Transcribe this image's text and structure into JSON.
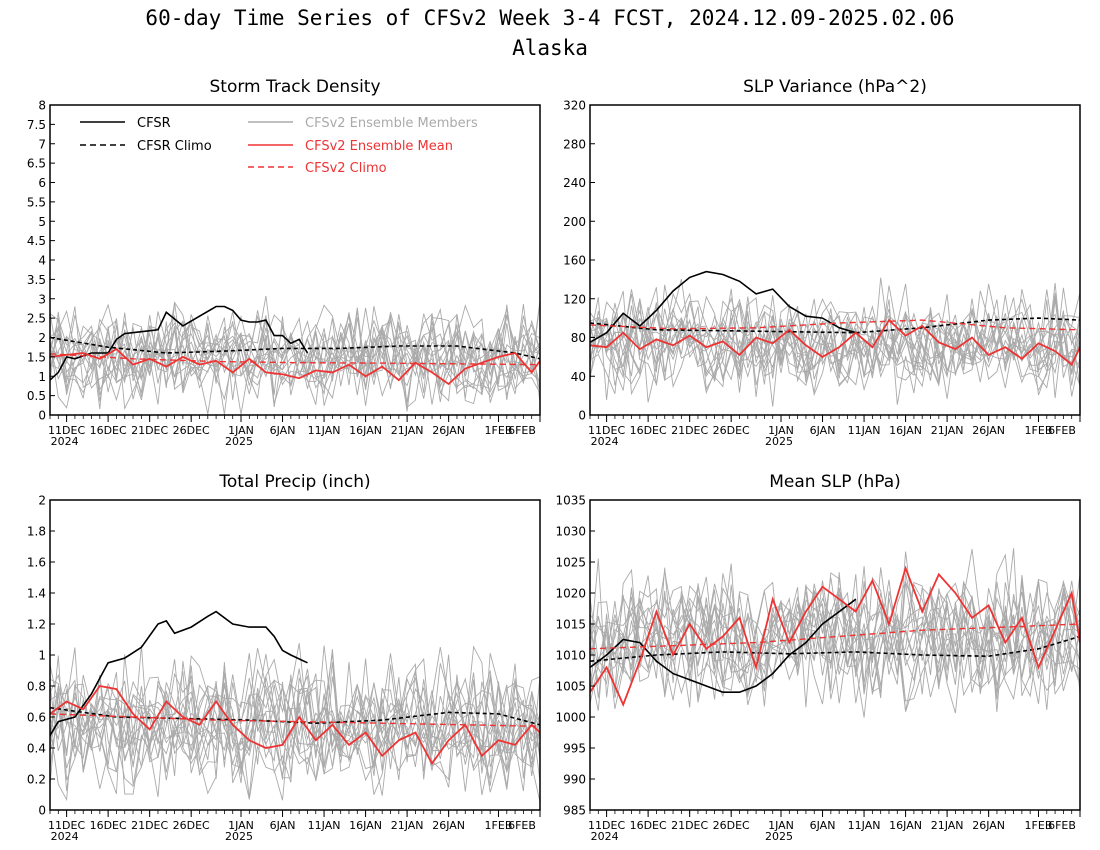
{
  "figure": {
    "title_line1": "60-day Time Series of CFSv2 Week 3-4 FCST, 2024.12.09-2025.02.06",
    "title_line2": "Alaska"
  },
  "colors": {
    "cfsr": "#000000",
    "ensemble_member": "#aaaaaa",
    "ensemble_mean": "#ee3333",
    "cfsv2_climo": "#ee3333"
  },
  "legend": {
    "cfsr": "CFSR",
    "cfsr_climo": "CFSR Climo",
    "members": "CFSv2 Ensemble Members",
    "mean": "CFSv2 Ensemble Mean",
    "cfsv2_climo": "CFSv2 Climo"
  },
  "chart_data": [
    {
      "type": "line",
      "title": "Storm Track Density",
      "x_start": "2024-12-09",
      "x_end": "2025-02-06",
      "xticks": [
        {
          "label": "11DEC",
          "sub": "2024"
        },
        {
          "label": "16DEC"
        },
        {
          "label": "21DEC"
        },
        {
          "label": "26DEC"
        },
        {
          "label": "1JAN",
          "sub": "2025"
        },
        {
          "label": "6JAN"
        },
        {
          "label": "11JAN"
        },
        {
          "label": "16JAN"
        },
        {
          "label": "21JAN"
        },
        {
          "label": "26JAN"
        },
        {
          "label": "1FEB"
        },
        {
          "label": "6FEB"
        }
      ],
      "ylim": [
        0,
        8
      ],
      "yticks": [
        "0",
        "0.5",
        "1",
        "1.5",
        "2",
        "2.5",
        "3",
        "3.5",
        "4",
        "4.5",
        "5",
        "5.5",
        "6",
        "6.5",
        "7",
        "7.5",
        "8"
      ],
      "member_count": 16,
      "member_center": 1.5,
      "member_spread": 1.3,
      "member_floor": 0,
      "series": [
        {
          "name": "CFSR",
          "dates": [
            "2024-12-09",
            "2024-12-10",
            "2024-12-11",
            "2024-12-12",
            "2024-12-14",
            "2024-12-16",
            "2024-12-17",
            "2024-12-18",
            "2024-12-20",
            "2024-12-22",
            "2024-12-23",
            "2024-12-25",
            "2024-12-27",
            "2024-12-29",
            "2024-12-30",
            "2024-12-31",
            "2025-01-01",
            "2025-01-02",
            "2025-01-03",
            "2025-01-04",
            "2025-01-05",
            "2025-01-06",
            "2025-01-07",
            "2025-01-08",
            "2025-01-09"
          ],
          "values": [
            0.9,
            1.1,
            1.5,
            1.45,
            1.6,
            1.6,
            1.95,
            2.1,
            2.15,
            2.2,
            2.65,
            2.3,
            2.55,
            2.8,
            2.8,
            2.7,
            2.45,
            2.4,
            2.4,
            2.45,
            2.05,
            2.05,
            1.85,
            1.95,
            1.6
          ]
        },
        {
          "name": "CFSR Climo",
          "dates": [
            "2024-12-09",
            "2024-12-16",
            "2024-12-23",
            "2024-12-30",
            "2025-01-06",
            "2025-01-13",
            "2025-01-20",
            "2025-01-27",
            "2025-02-03",
            "2025-02-06"
          ],
          "values": [
            2.0,
            1.75,
            1.6,
            1.65,
            1.72,
            1.72,
            1.78,
            1.78,
            1.6,
            1.45
          ]
        },
        {
          "name": "CFSv2 Ensemble Mean",
          "dates": [
            "2024-12-09",
            "2024-12-11",
            "2024-12-13",
            "2024-12-15",
            "2024-12-17",
            "2024-12-19",
            "2024-12-21",
            "2024-12-23",
            "2024-12-25",
            "2024-12-27",
            "2024-12-29",
            "2024-12-31",
            "2025-01-02",
            "2025-01-04",
            "2025-01-06",
            "2025-01-08",
            "2025-01-10",
            "2025-01-12",
            "2025-01-14",
            "2025-01-16",
            "2025-01-18",
            "2025-01-20",
            "2025-01-22",
            "2025-01-24",
            "2025-01-26",
            "2025-01-28",
            "2025-01-30",
            "2025-02-01",
            "2025-02-03",
            "2025-02-05",
            "2025-02-06"
          ],
          "values": [
            1.5,
            1.55,
            1.6,
            1.45,
            1.7,
            1.3,
            1.45,
            1.25,
            1.5,
            1.3,
            1.4,
            1.1,
            1.45,
            1.1,
            1.05,
            0.95,
            1.15,
            1.1,
            1.3,
            1.0,
            1.25,
            0.9,
            1.35,
            1.1,
            0.8,
            1.2,
            1.35,
            1.5,
            1.6,
            1.1,
            1.4
          ]
        },
        {
          "name": "CFSv2 Climo",
          "dates": [
            "2024-12-09",
            "2024-12-19",
            "2024-12-29",
            "2025-01-08",
            "2025-01-18",
            "2025-01-28",
            "2025-02-06"
          ],
          "values": [
            1.58,
            1.45,
            1.38,
            1.35,
            1.34,
            1.32,
            1.3
          ]
        }
      ]
    },
    {
      "type": "line",
      "title": "SLP Variance (hPa^2)",
      "x_start": "2024-12-09",
      "x_end": "2025-02-06",
      "xticks": [
        {
          "label": "11DEC",
          "sub": "2024"
        },
        {
          "label": "16DEC"
        },
        {
          "label": "21DEC"
        },
        {
          "label": "26DEC"
        },
        {
          "label": "1JAN",
          "sub": "2025"
        },
        {
          "label": "6JAN"
        },
        {
          "label": "11JAN"
        },
        {
          "label": "16JAN"
        },
        {
          "label": "21JAN"
        },
        {
          "label": "26JAN"
        },
        {
          "label": "1FEB"
        },
        {
          "label": "6FEB"
        }
      ],
      "ylim": [
        0,
        320
      ],
      "yticks": [
        "0",
        "40",
        "80",
        "120",
        "160",
        "200",
        "240",
        "280",
        "320"
      ],
      "member_count": 16,
      "member_center": 75,
      "member_spread": 55,
      "member_floor": 5,
      "series": [
        {
          "name": "CFSR",
          "dates": [
            "2024-12-09",
            "2024-12-11",
            "2024-12-13",
            "2024-12-15",
            "2024-12-17",
            "2024-12-19",
            "2024-12-21",
            "2024-12-23",
            "2024-12-25",
            "2024-12-27",
            "2024-12-29",
            "2024-12-31",
            "2025-01-02",
            "2025-01-04",
            "2025-01-06",
            "2025-01-08",
            "2025-01-10"
          ],
          "values": [
            75,
            85,
            105,
            92,
            108,
            128,
            142,
            148,
            145,
            138,
            125,
            130,
            112,
            102,
            100,
            90,
            85
          ]
        },
        {
          "name": "CFSR Climo",
          "dates": [
            "2024-12-09",
            "2024-12-17",
            "2024-12-25",
            "2025-01-02",
            "2025-01-10",
            "2025-01-18",
            "2025-01-26",
            "2025-02-01",
            "2025-02-06"
          ],
          "values": [
            95,
            88,
            87,
            86,
            85,
            90,
            98,
            100,
            98
          ]
        },
        {
          "name": "CFSv2 Ensemble Mean",
          "dates": [
            "2024-12-09",
            "2024-12-11",
            "2024-12-13",
            "2024-12-15",
            "2024-12-17",
            "2024-12-19",
            "2024-12-21",
            "2024-12-23",
            "2024-12-25",
            "2024-12-27",
            "2024-12-29",
            "2024-12-31",
            "2025-01-02",
            "2025-01-04",
            "2025-01-06",
            "2025-01-08",
            "2025-01-10",
            "2025-01-12",
            "2025-01-14",
            "2025-01-16",
            "2025-01-18",
            "2025-01-20",
            "2025-01-22",
            "2025-01-24",
            "2025-01-26",
            "2025-01-28",
            "2025-01-30",
            "2025-02-01",
            "2025-02-03",
            "2025-02-05",
            "2025-02-06"
          ],
          "values": [
            72,
            70,
            85,
            68,
            78,
            72,
            82,
            70,
            76,
            62,
            80,
            74,
            88,
            72,
            60,
            70,
            85,
            70,
            98,
            82,
            92,
            75,
            68,
            80,
            62,
            70,
            58,
            74,
            66,
            52,
            70
          ]
        },
        {
          "name": "CFSv2 Climo",
          "dates": [
            "2024-12-09",
            "2024-12-19",
            "2024-12-29",
            "2025-01-08",
            "2025-01-18",
            "2025-01-28",
            "2025-02-06"
          ],
          "values": [
            93,
            89,
            90,
            95,
            98,
            90,
            88
          ]
        }
      ]
    },
    {
      "type": "line",
      "title": "Total Precip (inch)",
      "x_start": "2024-12-09",
      "x_end": "2025-02-06",
      "xticks": [
        {
          "label": "11DEC",
          "sub": "2024"
        },
        {
          "label": "16DEC"
        },
        {
          "label": "21DEC"
        },
        {
          "label": "26DEC"
        },
        {
          "label": "1JAN",
          "sub": "2025"
        },
        {
          "label": "6JAN"
        },
        {
          "label": "11JAN"
        },
        {
          "label": "16JAN"
        },
        {
          "label": "21JAN"
        },
        {
          "label": "26JAN"
        },
        {
          "label": "1FEB"
        },
        {
          "label": "6FEB"
        }
      ],
      "ylim": [
        0,
        2
      ],
      "yticks": [
        "0",
        "0.2",
        "0.4",
        "0.6",
        "0.8",
        "1",
        "1.2",
        "1.4",
        "1.6",
        "1.8",
        "2"
      ],
      "member_count": 16,
      "member_center": 0.55,
      "member_spread": 0.45,
      "member_floor": 0.05,
      "series": [
        {
          "name": "CFSR",
          "dates": [
            "2024-12-09",
            "2024-12-10",
            "2024-12-12",
            "2024-12-14",
            "2024-12-15",
            "2024-12-16",
            "2024-12-18",
            "2024-12-20",
            "2024-12-22",
            "2024-12-23",
            "2024-12-24",
            "2024-12-26",
            "2024-12-28",
            "2024-12-29",
            "2024-12-31",
            "2025-01-02",
            "2025-01-04",
            "2025-01-05",
            "2025-01-06",
            "2025-01-07",
            "2025-01-09"
          ],
          "values": [
            0.48,
            0.57,
            0.6,
            0.75,
            0.85,
            0.95,
            0.98,
            1.05,
            1.2,
            1.22,
            1.14,
            1.18,
            1.25,
            1.28,
            1.2,
            1.18,
            1.18,
            1.12,
            1.03,
            1.0,
            0.95
          ]
        },
        {
          "name": "CFSR Climo",
          "dates": [
            "2024-12-09",
            "2024-12-17",
            "2024-12-25",
            "2025-01-02",
            "2025-01-10",
            "2025-01-18",
            "2025-01-26",
            "2025-02-01",
            "2025-02-06"
          ],
          "values": [
            0.66,
            0.6,
            0.59,
            0.58,
            0.56,
            0.58,
            0.63,
            0.62,
            0.55
          ]
        },
        {
          "name": "CFSv2 Ensemble Mean",
          "dates": [
            "2024-12-09",
            "2024-12-11",
            "2024-12-13",
            "2024-12-15",
            "2024-12-17",
            "2024-12-19",
            "2024-12-21",
            "2024-12-23",
            "2024-12-25",
            "2024-12-27",
            "2024-12-29",
            "2024-12-31",
            "2025-01-02",
            "2025-01-04",
            "2025-01-06",
            "2025-01-08",
            "2025-01-10",
            "2025-01-12",
            "2025-01-14",
            "2025-01-16",
            "2025-01-18",
            "2025-01-20",
            "2025-01-22",
            "2025-01-24",
            "2025-01-26",
            "2025-01-28",
            "2025-01-30",
            "2025-02-01",
            "2025-02-03",
            "2025-02-05",
            "2025-02-06"
          ],
          "values": [
            0.62,
            0.7,
            0.65,
            0.8,
            0.78,
            0.62,
            0.52,
            0.7,
            0.6,
            0.55,
            0.7,
            0.55,
            0.45,
            0.4,
            0.42,
            0.6,
            0.45,
            0.55,
            0.42,
            0.5,
            0.35,
            0.45,
            0.5,
            0.3,
            0.45,
            0.55,
            0.35,
            0.45,
            0.42,
            0.55,
            0.5
          ]
        },
        {
          "name": "CFSv2 Climo",
          "dates": [
            "2024-12-09",
            "2024-12-19",
            "2024-12-29",
            "2025-01-08",
            "2025-01-18",
            "2025-01-28",
            "2025-02-06"
          ],
          "values": [
            0.62,
            0.6,
            0.58,
            0.57,
            0.56,
            0.55,
            0.54
          ]
        }
      ]
    },
    {
      "type": "line",
      "title": "Mean SLP (hPa)",
      "x_start": "2024-12-09",
      "x_end": "2025-02-06",
      "xticks": [
        {
          "label": "11DEC",
          "sub": "2024"
        },
        {
          "label": "16DEC"
        },
        {
          "label": "21DEC"
        },
        {
          "label": "26DEC"
        },
        {
          "label": "1JAN",
          "sub": "2025"
        },
        {
          "label": "6JAN"
        },
        {
          "label": "11JAN"
        },
        {
          "label": "16JAN"
        },
        {
          "label": "21JAN"
        },
        {
          "label": "26JAN"
        },
        {
          "label": "1FEB"
        },
        {
          "label": "6FEB"
        }
      ],
      "ylim": [
        985,
        1035
      ],
      "yticks": [
        "985",
        "990",
        "995",
        "1000",
        "1005",
        "1010",
        "1015",
        "1020",
        "1025",
        "1030",
        "1035"
      ],
      "member_count": 16,
      "member_center": 1013,
      "member_spread": 12,
      "member_floor": 985,
      "series": [
        {
          "name": "CFSR",
          "dates": [
            "2024-12-09",
            "2024-12-11",
            "2024-12-13",
            "2024-12-15",
            "2024-12-17",
            "2024-12-19",
            "2024-12-21",
            "2024-12-23",
            "2024-12-25",
            "2024-12-27",
            "2024-12-29",
            "2024-12-31",
            "2025-01-02",
            "2025-01-04",
            "2025-01-06",
            "2025-01-08",
            "2025-01-10"
          ],
          "values": [
            1008,
            1010,
            1012.5,
            1012,
            1009,
            1007,
            1006,
            1005,
            1004,
            1004,
            1005,
            1007,
            1010,
            1012,
            1015,
            1017,
            1019
          ]
        },
        {
          "name": "CFSR Climo",
          "dates": [
            "2024-12-09",
            "2024-12-17",
            "2024-12-25",
            "2025-01-02",
            "2025-01-10",
            "2025-01-18",
            "2025-01-26",
            "2025-02-01",
            "2025-02-06"
          ],
          "values": [
            1009,
            1010,
            1010.5,
            1010.2,
            1010.5,
            1010,
            1009.8,
            1011,
            1013
          ]
        },
        {
          "name": "CFSv2 Ensemble Mean",
          "dates": [
            "2024-12-09",
            "2024-12-11",
            "2024-12-13",
            "2024-12-15",
            "2024-12-17",
            "2024-12-19",
            "2024-12-21",
            "2024-12-23",
            "2024-12-25",
            "2024-12-27",
            "2024-12-29",
            "2024-12-31",
            "2025-01-02",
            "2025-01-04",
            "2025-01-06",
            "2025-01-08",
            "2025-01-10",
            "2025-01-12",
            "2025-01-14",
            "2025-01-16",
            "2025-01-18",
            "2025-01-20",
            "2025-01-22",
            "2025-01-24",
            "2025-01-26",
            "2025-01-28",
            "2025-01-30",
            "2025-02-01",
            "2025-02-03",
            "2025-02-05",
            "2025-02-06"
          ],
          "values": [
            1004,
            1008,
            1002,
            1009,
            1017,
            1010,
            1015,
            1011,
            1013,
            1016,
            1008,
            1019,
            1012,
            1017,
            1021,
            1019,
            1017,
            1022,
            1015,
            1024,
            1017,
            1023,
            1020,
            1016,
            1018,
            1012,
            1016,
            1008,
            1014,
            1020,
            1012
          ]
        },
        {
          "name": "CFSv2 Climo",
          "dates": [
            "2024-12-09",
            "2024-12-19",
            "2024-12-29",
            "2025-01-08",
            "2025-01-18",
            "2025-01-28",
            "2025-02-06"
          ],
          "values": [
            1011,
            1011.5,
            1012,
            1013,
            1014,
            1014.5,
            1015
          ]
        }
      ]
    }
  ]
}
